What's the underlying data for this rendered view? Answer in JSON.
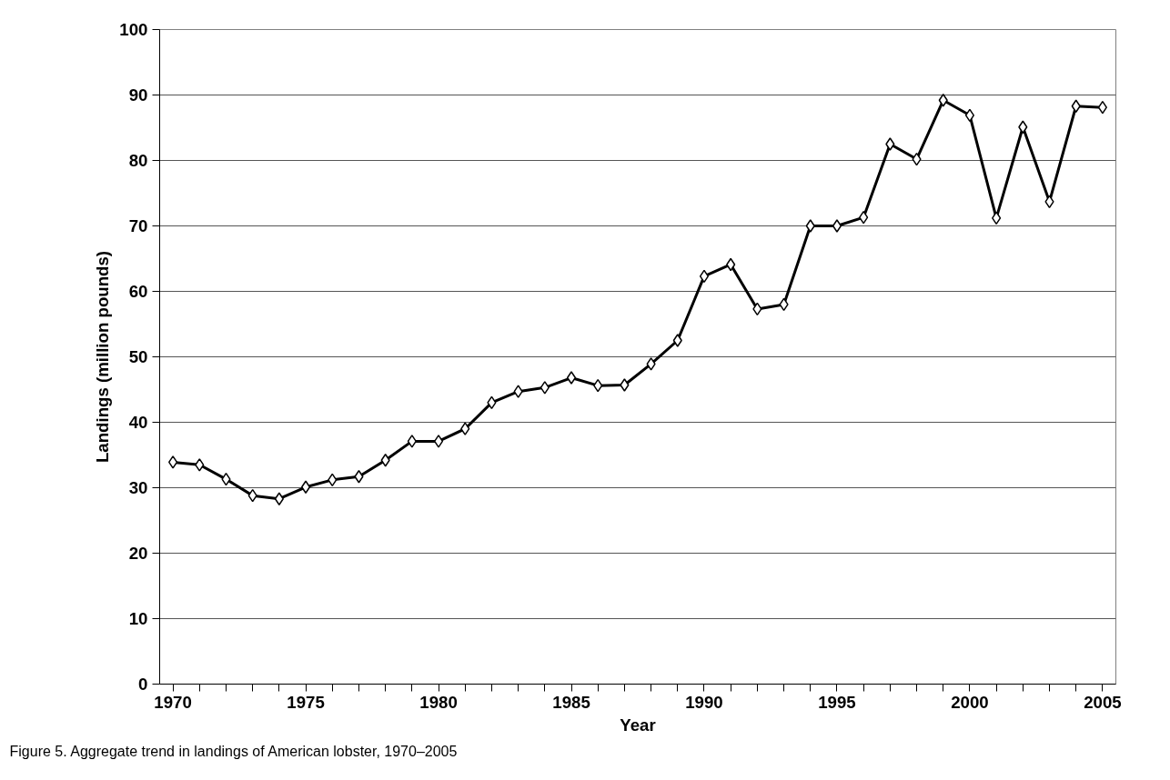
{
  "chart_data": {
    "type": "line",
    "xlabel": "Year",
    "ylabel": "Landings (million pounds)",
    "x": [
      1970,
      1971,
      1972,
      1973,
      1974,
      1975,
      1976,
      1977,
      1978,
      1979,
      1980,
      1981,
      1982,
      1983,
      1984,
      1985,
      1986,
      1987,
      1988,
      1989,
      1990,
      1991,
      1992,
      1993,
      1994,
      1995,
      1996,
      1997,
      1998,
      1999,
      2000,
      2001,
      2002,
      2003,
      2004,
      2005
    ],
    "series": [
      {
        "color": "#000000",
        "values": [
          33.9,
          33.5,
          31.3,
          28.8,
          28.3,
          30.1,
          31.2,
          31.7,
          34.2,
          37.1,
          37.1,
          39.0,
          43.0,
          44.7,
          45.3,
          46.8,
          45.6,
          45.7,
          48.9,
          52.5,
          62.3,
          64.1,
          57.3,
          58.0,
          70.0,
          70.0,
          71.3,
          82.5,
          80.2,
          89.2,
          86.9,
          71.2,
          85.1,
          73.7,
          88.3,
          88.1
        ]
      }
    ],
    "xlim": [
      1969.5,
      2005.5
    ],
    "xticks": [
      1970,
      {
        "value": 1971,
        "label": null
      },
      {
        "value": 1972,
        "label": null
      },
      {
        "value": 1973,
        "label": null
      },
      {
        "value": 1974,
        "label": null
      },
      1975,
      {
        "value": 1976,
        "label": null
      },
      {
        "value": 1977,
        "label": null
      },
      {
        "value": 1978,
        "label": null
      },
      {
        "value": 1979,
        "label": null
      },
      1980,
      {
        "value": 1981,
        "label": null
      },
      {
        "value": 1982,
        "label": null
      },
      {
        "value": 1983,
        "label": null
      },
      {
        "value": 1984,
        "label": null
      },
      1985,
      {
        "value": 1986,
        "label": null
      },
      {
        "value": 1987,
        "label": null
      },
      {
        "value": 1988,
        "label": null
      },
      {
        "value": 1989,
        "label": null
      },
      1990,
      {
        "value": 1991,
        "label": null
      },
      {
        "value": 1992,
        "label": null
      },
      {
        "value": 1993,
        "label": null
      },
      {
        "value": 1994,
        "label": null
      },
      1995,
      {
        "value": 1996,
        "label": null
      },
      {
        "value": 1997,
        "label": null
      },
      {
        "value": 1998,
        "label": null
      },
      {
        "value": 1999,
        "label": null
      },
      2000,
      {
        "value": 2001,
        "label": null
      },
      {
        "value": 2002,
        "label": null
      },
      {
        "value": 2003,
        "label": null
      },
      {
        "value": 2004,
        "label": null
      },
      2005
    ],
    "ylim": [
      0,
      100
    ],
    "yticks": [
      0,
      10,
      20,
      30,
      40,
      50,
      60,
      70,
      80,
      90,
      100
    ],
    "grid": "y",
    "marker": "diamond",
    "line_style": "solid",
    "annotations": [
      "Figure 5.  Aggregate trend in landings of American lobster, 1970–2005"
    ]
  }
}
